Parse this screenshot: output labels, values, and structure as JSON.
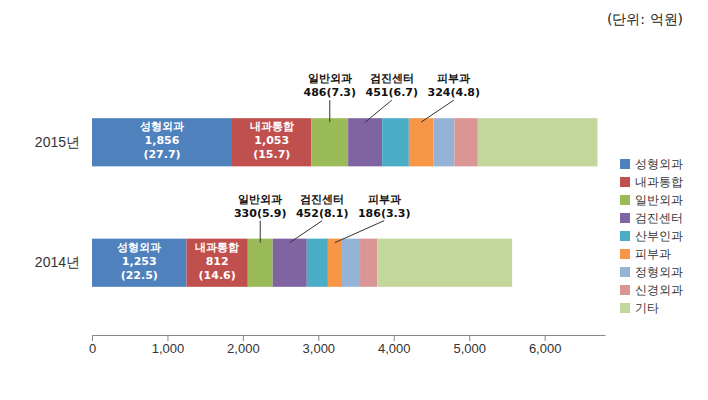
{
  "chart_data": {
    "type": "bar",
    "orientation": "horizontal",
    "stacked": true,
    "title": "(단위: 억원)",
    "categories": [
      "2015년",
      "2014년"
    ],
    "series": [
      {
        "name": "성형외과",
        "color": "#4f81bd",
        "values": [
          1856,
          1253
        ],
        "value_labels": [
          "1,856(27.7)",
          "1,253(22.5)"
        ]
      },
      {
        "name": "내과통합",
        "color": "#c0504d",
        "values": [
          1053,
          812
        ],
        "value_labels": [
          "1,053(15.7)",
          "812(14.6)"
        ]
      },
      {
        "name": "일반외과",
        "color": "#9bbb59",
        "values": [
          486,
          330
        ],
        "value_labels": [
          "486(7.3)",
          "330(5.9)"
        ]
      },
      {
        "name": "검진센터",
        "color": "#8064a2",
        "values": [
          451,
          452
        ],
        "value_labels": [
          "451(6.7)",
          "452(8.1)"
        ]
      },
      {
        "name": "산부인과",
        "color": "#4bacc6",
        "values": [
          354,
          280
        ]
      },
      {
        "name": "피부과",
        "color": "#f79646",
        "values": [
          324,
          186
        ],
        "value_labels": [
          "324(4.8)",
          "186(3.3)"
        ]
      },
      {
        "name": "정형외과",
        "color": "#95b3d7",
        "values": [
          280,
          240
        ]
      },
      {
        "name": "신경외과",
        "color": "#d99694",
        "values": [
          310,
          230
        ]
      },
      {
        "name": "기타",
        "color": "#c3d69b",
        "values": [
          1586,
          1786
        ]
      }
    ],
    "xlim": [
      0,
      6800
    ],
    "xticks": [
      0,
      {
        "value": 1000,
        "label": "1,000"
      },
      {
        "value": 2000,
        "label": "2,000"
      },
      {
        "value": 3000,
        "label": "3,000"
      },
      {
        "value": 4000,
        "label": "4,000"
      },
      {
        "value": 5000,
        "label": "5,000"
      },
      {
        "value": 6000,
        "label": "6,000"
      }
    ],
    "grid": false,
    "legend": "right",
    "data_labels": true
  }
}
